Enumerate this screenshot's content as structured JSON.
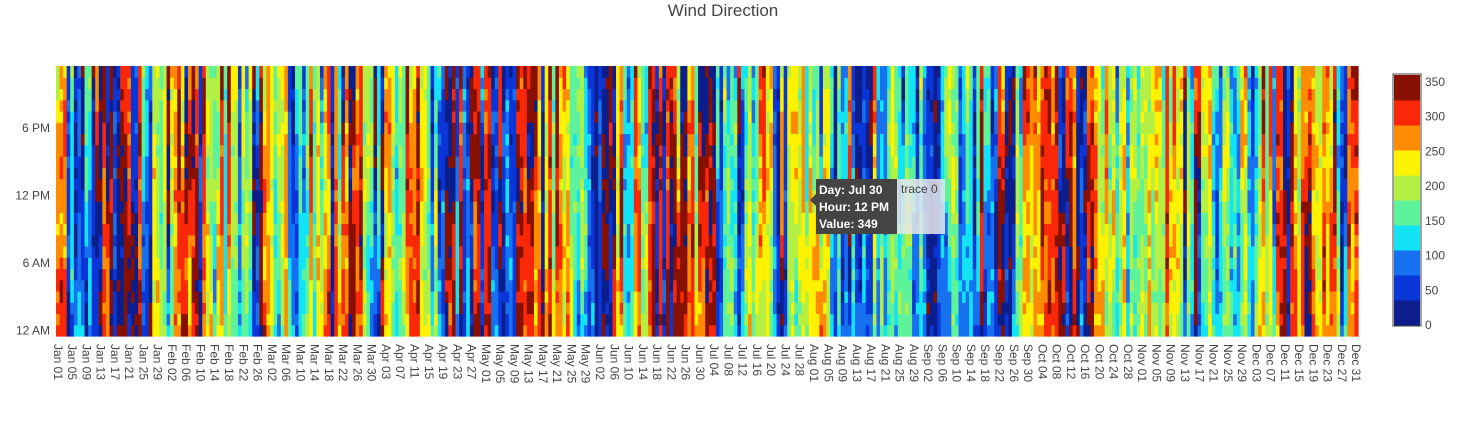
{
  "chart_data": {
    "type": "heatmap",
    "title": "Wind Direction",
    "x_start": "Jan 01",
    "x_end": "Dec 31",
    "x_count": 365,
    "x_tick_step": 4,
    "y_categories": [
      "12 AM",
      "1 AM",
      "2 AM",
      "3 AM",
      "4 AM",
      "5 AM",
      "6 AM",
      "7 AM",
      "8 AM",
      "9 AM",
      "10 AM",
      "11 AM",
      "12 PM",
      "1 PM",
      "2 PM",
      "3 PM",
      "4 PM",
      "5 PM",
      "6 PM",
      "7 PM",
      "8 PM",
      "9 PM",
      "10 PM",
      "11 PM"
    ],
    "y_ticks": [
      "6 AM",
      "12 PM",
      "6 PM",
      "12 AM"
    ],
    "zmin": 0,
    "zmax": 360,
    "colorscale": [
      "#0c1e8c",
      "#0a36d8",
      "#1670f0",
      "#12e4f6",
      "#5ef29a",
      "#b4f044",
      "#fff200",
      "#ff8c00",
      "#f82808",
      "#881000"
    ],
    "colorbar_ticks": [
      0,
      50,
      100,
      150,
      200,
      250,
      300,
      350
    ],
    "hover": {
      "lines": [
        "Day: Jul 30",
        "Hour: 12 PM",
        "Value: 349"
      ],
      "trace": "trace 0"
    }
  }
}
